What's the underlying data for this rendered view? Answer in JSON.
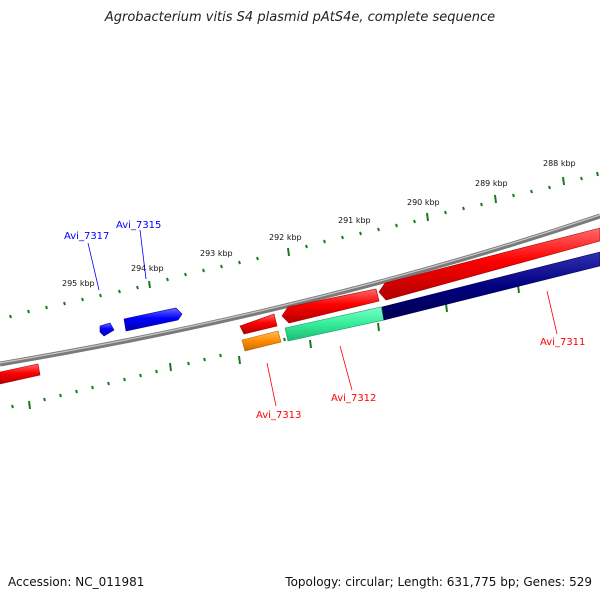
{
  "title": "Agrobacterium vitis S4 plasmid pAtS4e, complete sequence",
  "footer": {
    "accession": "Accession: NC_011981",
    "summary": "Topology: circular; Length: 631,775 bp; Genes: 529"
  },
  "ticks": [
    "288 kbp",
    "289 kbp",
    "290 kbp",
    "291 kbp",
    "292 kbp",
    "293 kbp",
    "294 kbp",
    "295 kbp"
  ],
  "genes": [
    {
      "name": "Avi_7317",
      "strand": "forward",
      "color": "#0000ff"
    },
    {
      "name": "Avi_7315",
      "strand": "forward",
      "color": "#0000ff"
    },
    {
      "name": "Avi_7313",
      "strand": "reverse",
      "color": "#ff0000"
    },
    {
      "name": "Avi_7312",
      "strand": "reverse",
      "color": "#ff0000"
    },
    {
      "name": "Avi_7311",
      "strand": "reverse",
      "color": "#ff0000"
    }
  ],
  "colors": {
    "backbone": "#808080",
    "tick": "#1a7a1a",
    "cds_forward": "#0000ff",
    "cds_reverse": "#ff0000",
    "rna": "#ff8c00",
    "misc": "#33ee99",
    "dark": "#000080"
  }
}
